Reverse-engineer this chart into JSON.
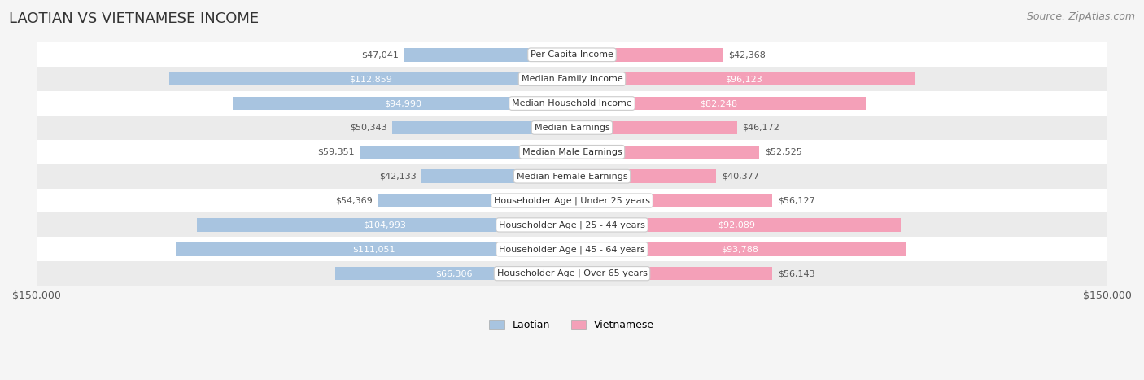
{
  "title": "LAOTIAN VS VIETNAMESE INCOME",
  "source": "Source: ZipAtlas.com",
  "categories": [
    "Per Capita Income",
    "Median Family Income",
    "Median Household Income",
    "Median Earnings",
    "Median Male Earnings",
    "Median Female Earnings",
    "Householder Age | Under 25 years",
    "Householder Age | 25 - 44 years",
    "Householder Age | 45 - 64 years",
    "Householder Age | Over 65 years"
  ],
  "laotian_values": [
    47041,
    112859,
    94990,
    50343,
    59351,
    42133,
    54369,
    104993,
    111051,
    66306
  ],
  "vietnamese_values": [
    42368,
    96123,
    82248,
    46172,
    52525,
    40377,
    56127,
    92089,
    93788,
    56143
  ],
  "laotian_color": "#a8c4e0",
  "vietnamese_color": "#f4a0b8",
  "laotian_label_color_dark": "#555555",
  "laotian_label_color_light": "#ffffff",
  "vietnamese_label_color_dark": "#555555",
  "vietnamese_label_color_light": "#ffffff",
  "max_value": 150000,
  "background_color": "#f5f5f5",
  "title_fontsize": 13,
  "source_fontsize": 9,
  "label_fontsize": 8,
  "category_fontsize": 8,
  "axis_label_fontsize": 9,
  "legend_fontsize": 9,
  "lao_threshold": 60000,
  "viet_threshold": 60000
}
